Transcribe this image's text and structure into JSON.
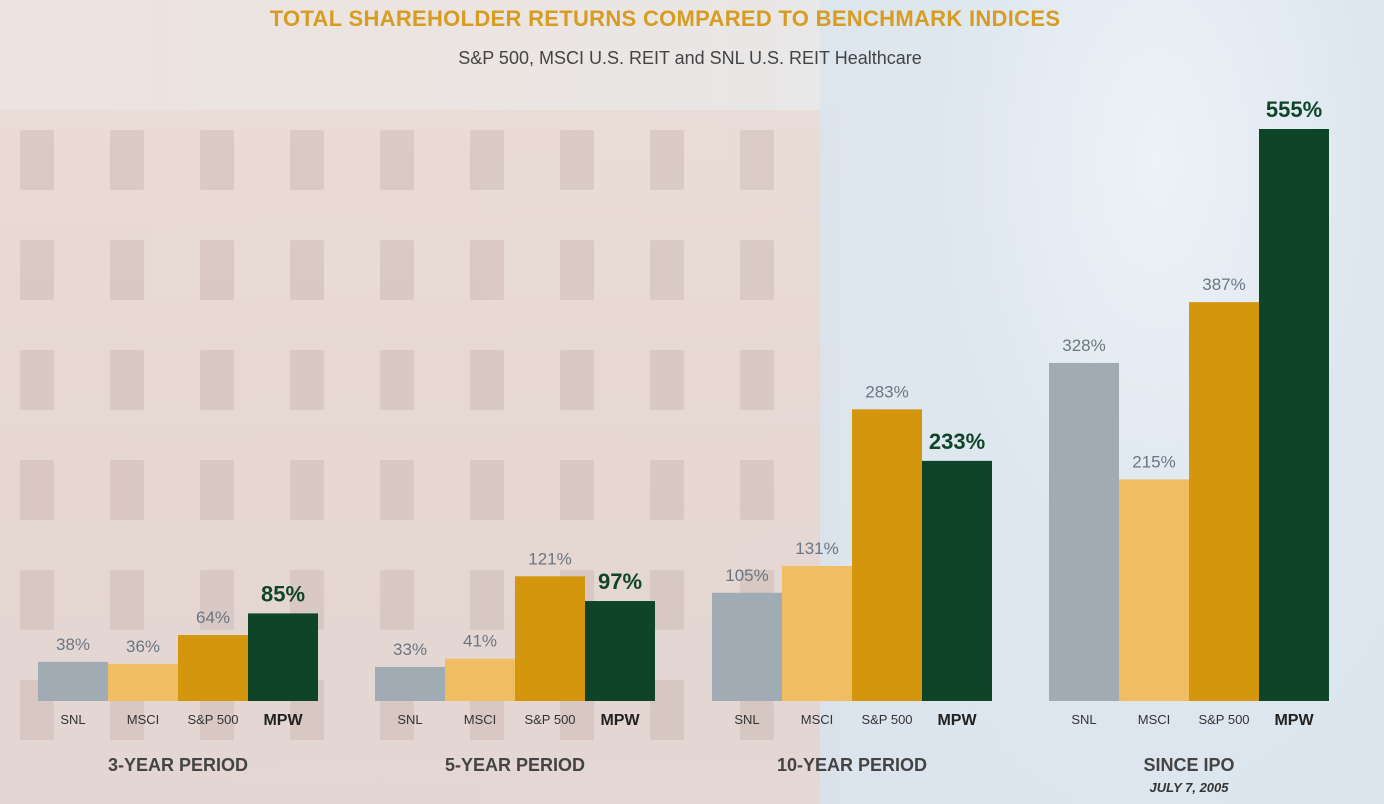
{
  "title": "TOTAL SHAREHOLDER RETURNS COMPARED TO BENCHMARK INDICES",
  "subtitle": "S&P 500, MSCI U.S. REIT and SNL U.S. REIT Healthcare",
  "colors": {
    "title": "#d79c22",
    "SNL": "#a1abb4",
    "MSCI": "#f0bd62",
    "S&P 500": "#d4960c",
    "MPW": "#0e4529"
  },
  "chart_data": {
    "type": "bar",
    "title": "TOTAL SHAREHOLDER RETURNS COMPARED TO BENCHMARK INDICES",
    "subtitle": "S&P 500, MSCI U.S. REIT and SNL U.S. REIT Healthcare",
    "categories": [
      "SNL",
      "MSCI",
      "S&P 500",
      "MPW"
    ],
    "ylim": [
      0,
      555
    ],
    "grid": false,
    "unit": "%",
    "groups": [
      {
        "label": "3-YEAR PERIOD",
        "sublabel": "",
        "values": [
          38,
          36,
          64,
          85
        ]
      },
      {
        "label": "5-YEAR PERIOD",
        "sublabel": "",
        "values": [
          33,
          41,
          121,
          97
        ]
      },
      {
        "label": "10-YEAR PERIOD",
        "sublabel": "",
        "values": [
          105,
          131,
          283,
          233
        ]
      },
      {
        "label": "SINCE IPO",
        "sublabel": "JULY 7, 2005",
        "values": [
          328,
          215,
          387,
          555
        ]
      }
    ]
  }
}
